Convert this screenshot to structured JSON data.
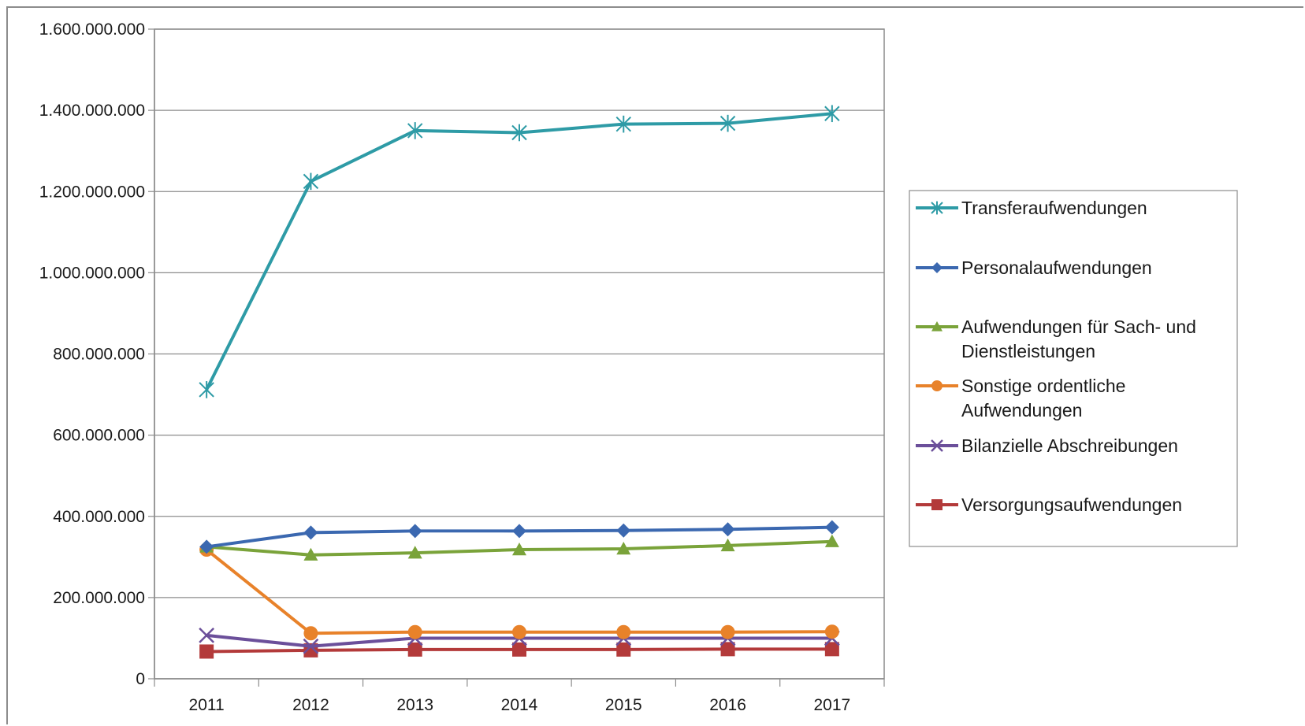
{
  "chart_data": {
    "type": "line",
    "categories": [
      "2011",
      "2012",
      "2013",
      "2014",
      "2015",
      "2016",
      "2017"
    ],
    "ylim": [
      0,
      1600000000
    ],
    "yticks": [
      0,
      200000000,
      400000000,
      600000000,
      800000000,
      1000000000,
      1200000000,
      1400000000,
      1600000000
    ],
    "ytick_labels": [
      "0",
      "200.000.000",
      "400.000.000",
      "600.000.000",
      "800.000.000",
      "1.000.000.000",
      "1.200.000.000",
      "1.400.000.000",
      "1.600.000.000"
    ],
    "grid": true,
    "legend_position": "right",
    "series": [
      {
        "name": "Transferaufwendungen",
        "color": "#2e9ba6",
        "marker": "asterisk",
        "values": [
          712000000,
          1225000000,
          1350000000,
          1345000000,
          1366000000,
          1368000000,
          1392000000
        ]
      },
      {
        "name": "Personalaufwendungen",
        "color": "#3b68b0",
        "marker": "diamond",
        "values": [
          325000000,
          360000000,
          364000000,
          364000000,
          365000000,
          368000000,
          373000000
        ]
      },
      {
        "name": "Aufwendungen für Sach- und Dienstleistungen",
        "legend_lines": [
          "Aufwendungen für Sach- und",
          "Dienstleistungen"
        ],
        "color": "#7aa33a",
        "marker": "triangle",
        "values": [
          325000000,
          305000000,
          310000000,
          318000000,
          320000000,
          328000000,
          338000000
        ]
      },
      {
        "name": "Sonstige ordentliche Aufwendungen",
        "legend_lines": [
          "Sonstige ordentliche",
          "Aufwendungen"
        ],
        "color": "#e8822a",
        "marker": "circle",
        "values": [
          318000000,
          112000000,
          115000000,
          115000000,
          115000000,
          115000000,
          116000000
        ]
      },
      {
        "name": "Bilanzielle Abschreibungen",
        "color": "#6b4f9a",
        "marker": "x",
        "values": [
          107000000,
          80000000,
          100000000,
          100000000,
          100000000,
          100000000,
          100000000
        ]
      },
      {
        "name": "Versorgungsaufwendungen",
        "color": "#b33a3a",
        "marker": "square",
        "values": [
          67000000,
          70000000,
          72000000,
          72000000,
          72000000,
          73000000,
          73000000
        ]
      }
    ]
  }
}
